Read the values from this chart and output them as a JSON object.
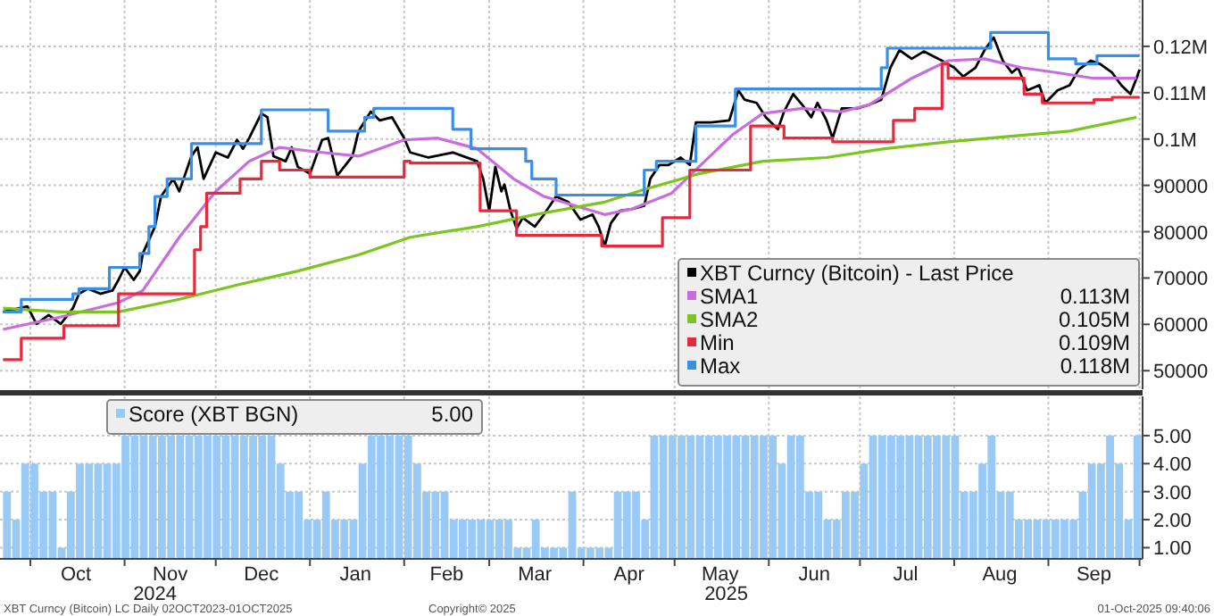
{
  "chart_data": [
    {
      "type": "line",
      "xlim": [
        "2024-09-21",
        "2025-10-02"
      ],
      "ylim": [
        46000,
        130000
      ],
      "yticks": [
        {
          "value": 120000,
          "label": "0.12M"
        },
        {
          "value": 110000,
          "label": "0.11M"
        },
        {
          "value": 100000,
          "label": "0.1M"
        },
        90000,
        80000,
        70000,
        60000,
        50000
      ],
      "xticks": [
        {
          "value": "2024-10-01",
          "label": null
        },
        {
          "value": "2024-11-01",
          "label": null
        },
        {
          "value": "2024-12-01",
          "label": null
        },
        {
          "value": "2025-01-01",
          "label": null
        },
        {
          "value": "2025-02-01",
          "label": null
        },
        {
          "value": "2025-03-01",
          "label": null
        },
        {
          "value": "2025-04-01",
          "label": null
        },
        {
          "value": "2025-05-01",
          "label": null
        },
        {
          "value": "2025-06-01",
          "label": null
        },
        {
          "value": "2025-07-01",
          "label": null
        },
        {
          "value": "2025-08-01",
          "label": null
        },
        {
          "value": "2025-09-01",
          "label": null
        },
        {
          "value": "2025-10-01",
          "label": null
        }
      ],
      "tick_labels": "y",
      "grid": true,
      "legend": "bottom right",
      "series": [
        {
          "name": "XBT Curncy (Bitcoin) - Last Price",
          "color": "#000000",
          "x": [
            "2024-09-22",
            "2024-09-30",
            "2024-10-03",
            "2024-10-07",
            "2024-10-11",
            "2024-10-15",
            "2024-10-17",
            "2024-10-20",
            "2024-10-24",
            "2024-10-28",
            "2024-10-30",
            "2024-11-01",
            "2024-11-04",
            "2024-11-06",
            "2024-11-07",
            "2024-11-11",
            "2024-11-13",
            "2024-11-17",
            "2024-11-19",
            "2024-11-21",
            "2024-11-23",
            "2024-11-25",
            "2024-11-27",
            "2024-12-01",
            "2024-12-05",
            "2024-12-08",
            "2024-12-10",
            "2024-12-12",
            "2024-12-16",
            "2024-12-18",
            "2024-12-20",
            "2024-12-24",
            "2024-12-26",
            "2024-12-28",
            "2025-01-01",
            "2025-01-05",
            "2025-01-07",
            "2025-01-10",
            "2025-01-15",
            "2025-01-17",
            "2025-01-21",
            "2025-01-24",
            "2025-01-28",
            "2025-02-01",
            "2025-02-03",
            "2025-02-09",
            "2025-02-17",
            "2025-02-25",
            "2025-02-27",
            "2025-03-01",
            "2025-03-03",
            "2025-03-05",
            "2025-03-06",
            "2025-03-08",
            "2025-03-10",
            "2025-03-12",
            "2025-03-16",
            "2025-03-19",
            "2025-03-23",
            "2025-03-27",
            "2025-03-31",
            "2025-04-04",
            "2025-04-06",
            "2025-04-08",
            "2025-04-10",
            "2025-04-13",
            "2025-04-17",
            "2025-04-21",
            "2025-04-23",
            "2025-04-26",
            "2025-04-29",
            "2025-05-03",
            "2025-05-06",
            "2025-05-08",
            "2025-05-13",
            "2025-05-19",
            "2025-05-22",
            "2025-05-24",
            "2025-05-28",
            "2025-05-31",
            "2025-06-04",
            "2025-06-06",
            "2025-06-09",
            "2025-06-12",
            "2025-06-15",
            "2025-06-17",
            "2025-06-20",
            "2025-06-22",
            "2025-06-25",
            "2025-06-30",
            "2025-07-04",
            "2025-07-08",
            "2025-07-11",
            "2025-07-14",
            "2025-07-18",
            "2025-07-22",
            "2025-07-28",
            "2025-08-01",
            "2025-08-04",
            "2025-08-08",
            "2025-08-11",
            "2025-08-14",
            "2025-08-17",
            "2025-08-20",
            "2025-08-22",
            "2025-08-25",
            "2025-08-29",
            "2025-08-31",
            "2025-09-04",
            "2025-09-08",
            "2025-09-11",
            "2025-09-15",
            "2025-09-18",
            "2025-09-22",
            "2025-09-25",
            "2025-09-28",
            "2025-09-30",
            "2025-10-01"
          ],
          "values": [
            62700,
            63900,
            60100,
            62000,
            60100,
            63500,
            66600,
            67700,
            66600,
            67300,
            69600,
            72300,
            69600,
            71500,
            75300,
            81100,
            87600,
            91400,
            88700,
            92500,
            96300,
            98200,
            91400,
            97100,
            96000,
            99800,
            97900,
            100200,
            105500,
            104700,
            96300,
            95200,
            98200,
            94000,
            92500,
            99800,
            100200,
            92100,
            96300,
            101700,
            105900,
            104000,
            104700,
            100200,
            97100,
            96000,
            97100,
            95200,
            91400,
            84500,
            94000,
            88700,
            90200,
            84500,
            80700,
            83000,
            81100,
            83700,
            87600,
            86400,
            82600,
            83700,
            81100,
            76900,
            81800,
            84500,
            84900,
            85600,
            91400,
            94400,
            94400,
            96000,
            94400,
            103600,
            103600,
            104000,
            110500,
            108500,
            107800,
            104700,
            102100,
            105900,
            109700,
            107400,
            104700,
            107800,
            104000,
            100200,
            106600,
            106600,
            107400,
            108500,
            115400,
            119200,
            117300,
            118900,
            116900,
            115400,
            113500,
            115400,
            119200,
            121900,
            116900,
            114300,
            115400,
            110500,
            111600,
            107800,
            110500,
            111600,
            115000,
            116900,
            116200,
            114300,
            111600,
            109700,
            113100,
            115000
          ]
        },
        {
          "name": "SMA1",
          "color": "#c86dde",
          "x": [
            "2024-09-22",
            "2024-10-11",
            "2024-10-30",
            "2024-11-07",
            "2024-11-19",
            "2024-12-01",
            "2024-12-12",
            "2024-12-22",
            "2025-01-05",
            "2025-01-17",
            "2025-02-01",
            "2025-02-12",
            "2025-02-25",
            "2025-03-09",
            "2025-03-19",
            "2025-04-04",
            "2025-04-08",
            "2025-04-17",
            "2025-04-30",
            "2025-05-09",
            "2025-05-20",
            "2025-05-30",
            "2025-06-12",
            "2025-06-25",
            "2025-07-04",
            "2025-07-18",
            "2025-07-30",
            "2025-08-11",
            "2025-08-23",
            "2025-09-04",
            "2025-09-16",
            "2025-09-30"
          ],
          "values": [
            58900,
            61600,
            64700,
            67300,
            78800,
            88700,
            95200,
            98200,
            97100,
            96300,
            99800,
            100200,
            97900,
            91400,
            87600,
            84500,
            83700,
            84900,
            88300,
            94000,
            100900,
            105500,
            106600,
            105900,
            107400,
            113100,
            116900,
            117300,
            115400,
            114300,
            113100,
            113100
          ]
        },
        {
          "name": "SMA2",
          "color": "#7cc520",
          "x": [
            "2024-09-22",
            "2024-10-11",
            "2024-10-30",
            "2024-11-19",
            "2024-12-08",
            "2024-12-28",
            "2025-01-17",
            "2025-02-03",
            "2025-02-25",
            "2025-03-16",
            "2025-04-08",
            "2025-04-21",
            "2025-05-09",
            "2025-05-30",
            "2025-06-20",
            "2025-07-09",
            "2025-07-30",
            "2025-08-18",
            "2025-09-08",
            "2025-09-30"
          ],
          "values": [
            63500,
            62700,
            62700,
            65400,
            68500,
            71500,
            75000,
            78800,
            81100,
            83700,
            86400,
            89100,
            92500,
            95200,
            96000,
            97900,
            99400,
            100500,
            101700,
            104700
          ]
        },
        {
          "name": "Min",
          "color": "#e8283c",
          "type": "step",
          "x": [
            "2024-09-22",
            "2024-09-28",
            "2024-10-12",
            "2024-10-30",
            "2024-11-24",
            "2024-11-26",
            "2024-11-28",
            "2024-12-09",
            "2024-12-16",
            "2024-12-22",
            "2025-01-01",
            "2025-02-01",
            "2025-02-03",
            "2025-02-26",
            "2025-03-10",
            "2025-04-07",
            "2025-04-27",
            "2025-05-06",
            "2025-05-26",
            "2025-06-06",
            "2025-06-22",
            "2025-07-12",
            "2025-07-19",
            "2025-07-28",
            "2025-07-30",
            "2025-08-24",
            "2025-08-30",
            "2025-09-16",
            "2025-09-22",
            "2025-10-01"
          ],
          "values": [
            52400,
            57000,
            59700,
            66600,
            76100,
            81100,
            88300,
            91400,
            95200,
            93300,
            91800,
            95200,
            94800,
            84500,
            79200,
            76900,
            83000,
            93300,
            102800,
            100200,
            99400,
            104000,
            106600,
            116200,
            113100,
            109700,
            107800,
            108500,
            109000,
            109000
          ]
        },
        {
          "name": "Max",
          "color": "#3a8ee6",
          "type": "step",
          "x": [
            "2024-09-22",
            "2024-09-28",
            "2024-10-15",
            "2024-10-17",
            "2024-10-27",
            "2024-11-06",
            "2024-11-09",
            "2024-11-11",
            "2024-11-15",
            "2024-11-23",
            "2024-12-16",
            "2025-01-07",
            "2025-01-19",
            "2025-01-22",
            "2025-02-17",
            "2025-02-23",
            "2025-03-13",
            "2025-03-15",
            "2025-03-23",
            "2025-04-21",
            "2025-04-25",
            "2025-05-08",
            "2025-05-21",
            "2025-07-08",
            "2025-07-10",
            "2025-08-13",
            "2025-09-01",
            "2025-09-10",
            "2025-09-17",
            "2025-10-01"
          ],
          "values": [
            62700,
            65400,
            66600,
            67700,
            72300,
            75300,
            81100,
            87600,
            91400,
            99000,
            106300,
            101700,
            104700,
            106600,
            102100,
            97900,
            95200,
            91400,
            87900,
            93300,
            95200,
            102800,
            110800,
            115400,
            119600,
            123000,
            117300,
            116200,
            118000,
            118000
          ]
        }
      ],
      "annotations": [
        "0.113M",
        "0.105M",
        "0.109M",
        "0.118M"
      ]
    },
    {
      "type": "bar",
      "xlim": [
        "2024-09-21",
        "2025-10-02"
      ],
      "ylim": [
        0.6,
        6.4
      ],
      "yticks": [
        {
          "value": 5,
          "label": "5.00"
        },
        {
          "value": 4,
          "label": "4.00"
        },
        {
          "value": 3,
          "label": "3.00"
        },
        {
          "value": 2,
          "label": "2.00"
        },
        {
          "value": 1,
          "label": "1.00"
        }
      ],
      "xticks": [
        {
          "value": "2024-10-01",
          "label": null
        },
        {
          "value": "2024-10-16",
          "label": "Oct"
        },
        {
          "value": "2024-11-01",
          "label": null
        },
        {
          "value": "2024-11-16",
          "label": "Nov"
        },
        {
          "value": "2024-12-01",
          "label": null
        },
        {
          "value": "2024-12-16",
          "label": "Dec"
        },
        {
          "value": "2025-01-01",
          "label": null
        },
        {
          "value": "2025-01-16",
          "label": "Jan"
        },
        {
          "value": "2025-02-01",
          "label": null
        },
        {
          "value": "2025-02-15",
          "label": "Feb"
        },
        {
          "value": "2025-03-01",
          "label": null
        },
        {
          "value": "2025-03-16",
          "label": "Mar"
        },
        {
          "value": "2025-04-01",
          "label": null
        },
        {
          "value": "2025-04-16",
          "label": "Apr"
        },
        {
          "value": "2025-05-01",
          "label": null
        },
        {
          "value": "2025-05-16",
          "label": "May"
        },
        {
          "value": "2025-06-01",
          "label": null
        },
        {
          "value": "2025-06-16",
          "label": "Jun"
        },
        {
          "value": "2025-07-01",
          "label": null
        },
        {
          "value": "2025-07-16",
          "label": "Jul"
        },
        {
          "value": "2025-08-01",
          "label": null
        },
        {
          "value": "2025-08-16",
          "label": "Aug"
        },
        {
          "value": "2025-09-01",
          "label": null
        },
        {
          "value": "2025-09-16",
          "label": "Sep"
        },
        {
          "value": "2025-10-01",
          "label": null
        }
      ],
      "grid": true,
      "legend": "top left",
      "series": [
        {
          "name": "Score (XBT BGN)",
          "color": "#99c9f5",
          "x": [
            "2024-09-22",
            "2024-09-25",
            "2024-09-28",
            "2024-10-01",
            "2024-10-04",
            "2024-10-07",
            "2024-10-10",
            "2024-10-13",
            "2024-10-16",
            "2024-10-19",
            "2024-10-22",
            "2024-10-25",
            "2024-10-28",
            "2024-10-31",
            "2024-11-03",
            "2024-11-06",
            "2024-11-09",
            "2024-11-12",
            "2024-11-15",
            "2024-11-18",
            "2024-11-21",
            "2024-11-24",
            "2024-11-27",
            "2024-11-30",
            "2024-12-03",
            "2024-12-06",
            "2024-12-09",
            "2024-12-12",
            "2024-12-15",
            "2024-12-18",
            "2024-12-21",
            "2024-12-24",
            "2024-12-27",
            "2024-12-30",
            "2025-01-02",
            "2025-01-05",
            "2025-01-08",
            "2025-01-11",
            "2025-01-14",
            "2025-01-17",
            "2025-01-20",
            "2025-01-23",
            "2025-01-26",
            "2025-01-29",
            "2025-02-01",
            "2025-02-04",
            "2025-02-07",
            "2025-02-10",
            "2025-02-13",
            "2025-02-16",
            "2025-02-19",
            "2025-02-22",
            "2025-02-25",
            "2025-02-28",
            "2025-03-03",
            "2025-03-06",
            "2025-03-09",
            "2025-03-12",
            "2025-03-15",
            "2025-03-18",
            "2025-03-21",
            "2025-03-24",
            "2025-03-27",
            "2025-03-30",
            "2025-04-02",
            "2025-04-05",
            "2025-04-08",
            "2025-04-11",
            "2025-04-14",
            "2025-04-17",
            "2025-04-20",
            "2025-04-23",
            "2025-04-26",
            "2025-04-29",
            "2025-05-02",
            "2025-05-05",
            "2025-05-08",
            "2025-05-11",
            "2025-05-14",
            "2025-05-17",
            "2025-05-20",
            "2025-05-23",
            "2025-05-26",
            "2025-05-29",
            "2025-06-01",
            "2025-06-04",
            "2025-06-07",
            "2025-06-10",
            "2025-06-13",
            "2025-06-16",
            "2025-06-19",
            "2025-06-22",
            "2025-06-25",
            "2025-06-28",
            "2025-07-01",
            "2025-07-04",
            "2025-07-07",
            "2025-07-10",
            "2025-07-13",
            "2025-07-16",
            "2025-07-19",
            "2025-07-22",
            "2025-07-25",
            "2025-07-28",
            "2025-07-31",
            "2025-08-03",
            "2025-08-06",
            "2025-08-09",
            "2025-08-12",
            "2025-08-15",
            "2025-08-18",
            "2025-08-21",
            "2025-08-24",
            "2025-08-27",
            "2025-08-30",
            "2025-09-02",
            "2025-09-05",
            "2025-09-08",
            "2025-09-11",
            "2025-09-14",
            "2025-09-17",
            "2025-09-20",
            "2025-09-23",
            "2025-09-26",
            "2025-09-29"
          ],
          "values": [
            3,
            2,
            4,
            4,
            3,
            3,
            1,
            3,
            4,
            4,
            4,
            4,
            4,
            5,
            5,
            5,
            5,
            5,
            5,
            5,
            5,
            5,
            5,
            5,
            5,
            5,
            5,
            5,
            5,
            5,
            4,
            3,
            3,
            2,
            2,
            3,
            2,
            2,
            2,
            4,
            5,
            5,
            5,
            5,
            5,
            4,
            3,
            3,
            3,
            2,
            2,
            2,
            2,
            2,
            2,
            2,
            1,
            1,
            2,
            1,
            1,
            1,
            3,
            1,
            1,
            1,
            1,
            3,
            3,
            3,
            2,
            5,
            5,
            5,
            5,
            5,
            5,
            5,
            5,
            5,
            5,
            5,
            5,
            5,
            5,
            4,
            5,
            5,
            3,
            3,
            2,
            2,
            3,
            3,
            4,
            5,
            5,
            5,
            5,
            5,
            5,
            5,
            5,
            5,
            5,
            3,
            3,
            4,
            5,
            3,
            3,
            2,
            2,
            2,
            2,
            2,
            2,
            2,
            3,
            4,
            4,
            5,
            4,
            2,
            5
          ]
        }
      ],
      "annotations": [
        "5.00",
        "2024",
        "2025",
        "XBT Curncy (Bitcoin) LC  Daily 02OCT2023-01OCT2025",
        "Copyright© 2025",
        "01-Oct-2025 09:40:06"
      ]
    }
  ]
}
